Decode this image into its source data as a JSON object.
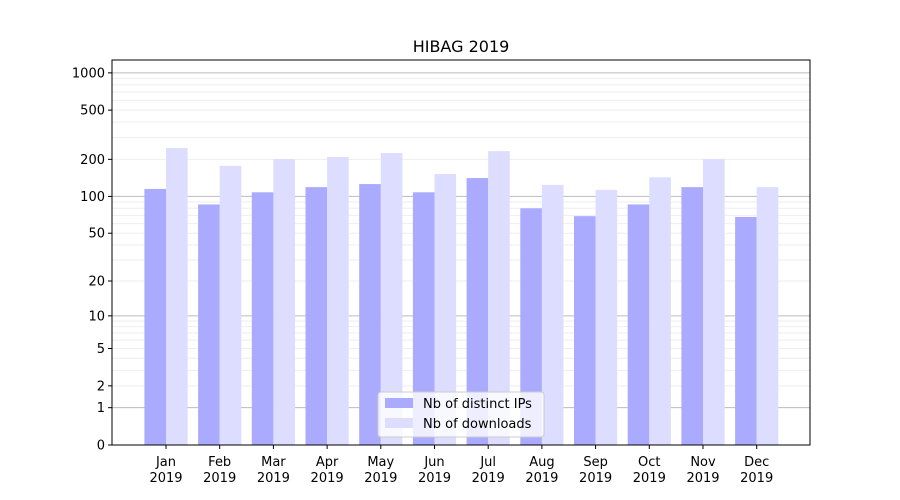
{
  "chart_data": {
    "type": "bar",
    "title": "HIBAG 2019",
    "xlabel": "",
    "ylabel": "",
    "y_scale": "log(1+y)",
    "ylim": [
      0,
      1270
    ],
    "y_ticks": [
      0,
      1,
      2,
      5,
      10,
      20,
      50,
      100,
      200,
      500,
      1000
    ],
    "grid": true,
    "legend_position": "bottom-center",
    "categories": [
      "Jan\n2019",
      "Feb\n2019",
      "Mar\n2019",
      "Apr\n2019",
      "May\n2019",
      "Jun\n2019",
      "Jul\n2019",
      "Aug\n2019",
      "Sep\n2019",
      "Oct\n2019",
      "Nov\n2019",
      "Dec\n2019"
    ],
    "series": [
      {
        "name": "Nb of distinct IPs",
        "color": "#aaaaff",
        "values": [
          115,
          86,
          108,
          119,
          126,
          108,
          141,
          80,
          69,
          86,
          119,
          68
        ]
      },
      {
        "name": "Nb of downloads",
        "color": "#ddddff",
        "values": [
          247,
          177,
          201,
          209,
          225,
          152,
          233,
          124,
          113,
          143,
          201,
          119
        ]
      }
    ]
  }
}
